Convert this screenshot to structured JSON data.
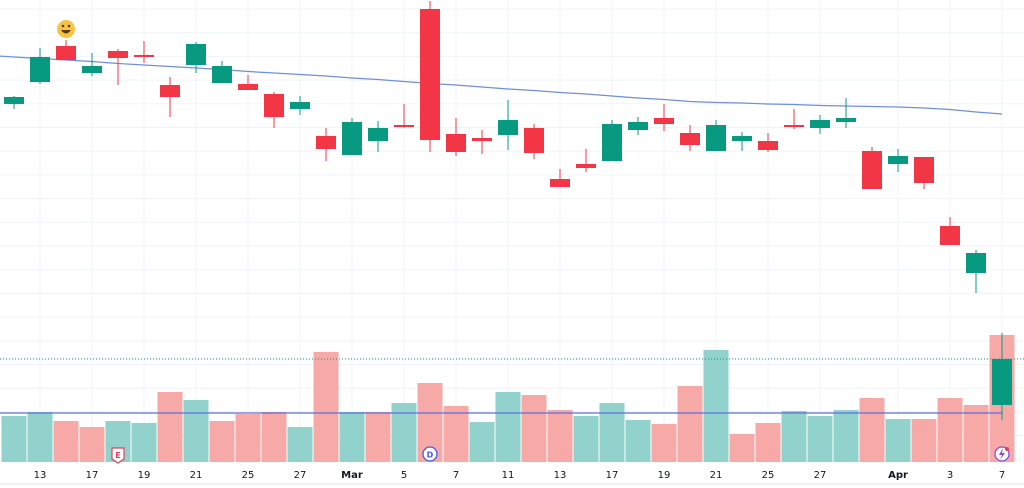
{
  "chart_data": {
    "type": "candlestick",
    "title": "",
    "xlabel": "",
    "ylabel": "",
    "price_unit_note": "relative price units (no price axis shown)",
    "ylim": [
      0,
      100
    ],
    "grid": true,
    "colors": {
      "up": "#089981",
      "down": "#F23645",
      "volume_up": "#92D2CC",
      "volume_down": "#F7A9A7",
      "ma": "#6F8FD9",
      "volume_ma": "#5B6FE0",
      "last_price_line": "#089981"
    },
    "x_ticks": [
      {
        "index": 1,
        "label": "13"
      },
      {
        "index": 3,
        "label": "17"
      },
      {
        "index": 5,
        "label": "19"
      },
      {
        "index": 7,
        "label": "21"
      },
      {
        "index": 9,
        "label": "25"
      },
      {
        "index": 11,
        "label": "27"
      },
      {
        "index": 13,
        "label": "Mar",
        "month": true
      },
      {
        "index": 15,
        "label": "5"
      },
      {
        "index": 17,
        "label": "7"
      },
      {
        "index": 19,
        "label": "11"
      },
      {
        "index": 21,
        "label": "13"
      },
      {
        "index": 23,
        "label": "17"
      },
      {
        "index": 25,
        "label": "19"
      },
      {
        "index": 27,
        "label": "21"
      },
      {
        "index": 29,
        "label": "25"
      },
      {
        "index": 31,
        "label": "27"
      },
      {
        "index": 34,
        "label": "Apr",
        "month": true
      },
      {
        "index": 36,
        "label": "3"
      },
      {
        "index": 38,
        "label": "7"
      }
    ],
    "candles": [
      {
        "o": 79.2,
        "h": 80.8,
        "l": 78.2,
        "c": 80.6
      },
      {
        "o": 83.6,
        "h": 90.4,
        "l": 83.2,
        "c": 88.6
      },
      {
        "o": 90.8,
        "h": 92.0,
        "l": 88.0,
        "c": 88.0
      },
      {
        "o": 85.4,
        "h": 89.4,
        "l": 84.8,
        "c": 86.8
      },
      {
        "o": 89.8,
        "h": 90.2,
        "l": 83.0,
        "c": 88.4
      },
      {
        "o": 89.0,
        "h": 91.8,
        "l": 87.4,
        "c": 88.6
      },
      {
        "o": 83.0,
        "h": 84.6,
        "l": 76.6,
        "c": 80.6
      },
      {
        "o": 87.0,
        "h": 91.6,
        "l": 85.4,
        "c": 91.2
      },
      {
        "o": 83.4,
        "h": 87.8,
        "l": 83.4,
        "c": 86.8
      },
      {
        "o": 83.2,
        "h": 85.0,
        "l": 82.0,
        "c": 82.0
      },
      {
        "o": 81.2,
        "h": 81.6,
        "l": 74.4,
        "c": 76.6
      },
      {
        "o": 78.2,
        "h": 80.8,
        "l": 77.0,
        "c": 79.6
      },
      {
        "o": 72.8,
        "h": 74.4,
        "l": 67.8,
        "c": 70.2
      },
      {
        "o": 69.0,
        "h": 76.4,
        "l": 69.0,
        "c": 75.6
      },
      {
        "o": 71.8,
        "h": 75.8,
        "l": 69.6,
        "c": 74.4
      },
      {
        "o": 75.0,
        "h": 79.2,
        "l": 74.4,
        "c": 74.8
      },
      {
        "o": 98.2,
        "h": 99.8,
        "l": 69.6,
        "c": 72.0
      },
      {
        "o": 73.2,
        "h": 76.4,
        "l": 68.8,
        "c": 69.6
      },
      {
        "o": 72.4,
        "h": 74.0,
        "l": 69.2,
        "c": 71.8
      },
      {
        "o": 73.0,
        "h": 80.0,
        "l": 70.0,
        "c": 76.0
      },
      {
        "o": 74.4,
        "h": 75.2,
        "l": 68.2,
        "c": 69.4
      },
      {
        "o": 64.2,
        "h": 66.2,
        "l": 62.6,
        "c": 62.6
      },
      {
        "o": 67.2,
        "h": 70.2,
        "l": 65.6,
        "c": 66.4
      },
      {
        "o": 67.8,
        "h": 76.0,
        "l": 67.8,
        "c": 75.2
      },
      {
        "o": 74.0,
        "h": 76.6,
        "l": 73.0,
        "c": 75.6
      },
      {
        "o": 76.4,
        "h": 79.2,
        "l": 73.8,
        "c": 75.2
      },
      {
        "o": 73.4,
        "h": 75.0,
        "l": 69.8,
        "c": 71.0
      },
      {
        "o": 69.8,
        "h": 76.0,
        "l": 69.8,
        "c": 75.0
      },
      {
        "o": 71.8,
        "h": 73.6,
        "l": 69.8,
        "c": 72.8
      },
      {
        "o": 71.8,
        "h": 73.4,
        "l": 69.6,
        "c": 70.0
      },
      {
        "o": 75.0,
        "h": 78.2,
        "l": 74.2,
        "c": 74.6
      },
      {
        "o": 74.4,
        "h": 77.0,
        "l": 73.2,
        "c": 76.0
      },
      {
        "o": 75.6,
        "h": 80.4,
        "l": 74.4,
        "c": 76.4
      },
      {
        "o": 69.8,
        "h": 70.6,
        "l": 62.2,
        "c": 62.2
      },
      {
        "o": 67.2,
        "h": 70.2,
        "l": 65.6,
        "c": 68.8
      },
      {
        "o": 68.6,
        "h": 68.6,
        "l": 62.2,
        "c": 63.4
      },
      {
        "o": 54.8,
        "h": 56.6,
        "l": 51.0,
        "c": 51.0
      },
      {
        "o": 45.4,
        "h": 50.0,
        "l": 41.4,
        "c": 49.4
      },
      {
        "o": 19.0,
        "h": 33.4,
        "l": 16.0,
        "c": 28.2
      }
    ],
    "moving_average": [
      88.6,
      88.3,
      88.0,
      87.7,
      87.3,
      87.0,
      86.7,
      86.4,
      86.1,
      85.7,
      85.4,
      85.1,
      84.8,
      84.4,
      84.1,
      83.7,
      83.3,
      83.0,
      82.6,
      82.2,
      81.9,
      81.5,
      81.2,
      80.8,
      80.4,
      80.1,
      79.7,
      79.5,
      79.4,
      79.2,
      79.1,
      78.9,
      78.8,
      78.7,
      78.6,
      78.4,
      78.1,
      77.6,
      77.2
    ],
    "volume": {
      "unit": "relative",
      "values": [
        4.6,
        5.0,
        4.1,
        3.5,
        4.1,
        3.9,
        7.0,
        6.2,
        4.1,
        4.8,
        5.0,
        3.5,
        11.0,
        5.0,
        5.0,
        5.9,
        7.9,
        5.6,
        4.0,
        7.0,
        6.7,
        5.2,
        4.6,
        5.9,
        4.2,
        3.8,
        7.6,
        11.2,
        2.8,
        3.9,
        5.1,
        4.6,
        5.2,
        6.4,
        4.3,
        4.3,
        6.4,
        5.7,
        12.7
      ],
      "direction": [
        "up",
        "up",
        "down",
        "down",
        "up",
        "up",
        "down",
        "up",
        "down",
        "down",
        "down",
        "up",
        "down",
        "up",
        "down",
        "up",
        "down",
        "down",
        "up",
        "up",
        "down",
        "down",
        "up",
        "up",
        "up",
        "down",
        "down",
        "up",
        "down",
        "down",
        "up",
        "up",
        "up",
        "down",
        "up",
        "down",
        "down",
        "down",
        "down"
      ],
      "ma": 4.9
    },
    "last_price": 28.2,
    "markers": [
      {
        "index": 2,
        "type": "emoji-smile"
      },
      {
        "index": 4,
        "type": "earnings",
        "label": "E"
      },
      {
        "index": 16,
        "type": "dividend",
        "label": "D"
      },
      {
        "index": 38,
        "type": "lightning"
      }
    ]
  }
}
